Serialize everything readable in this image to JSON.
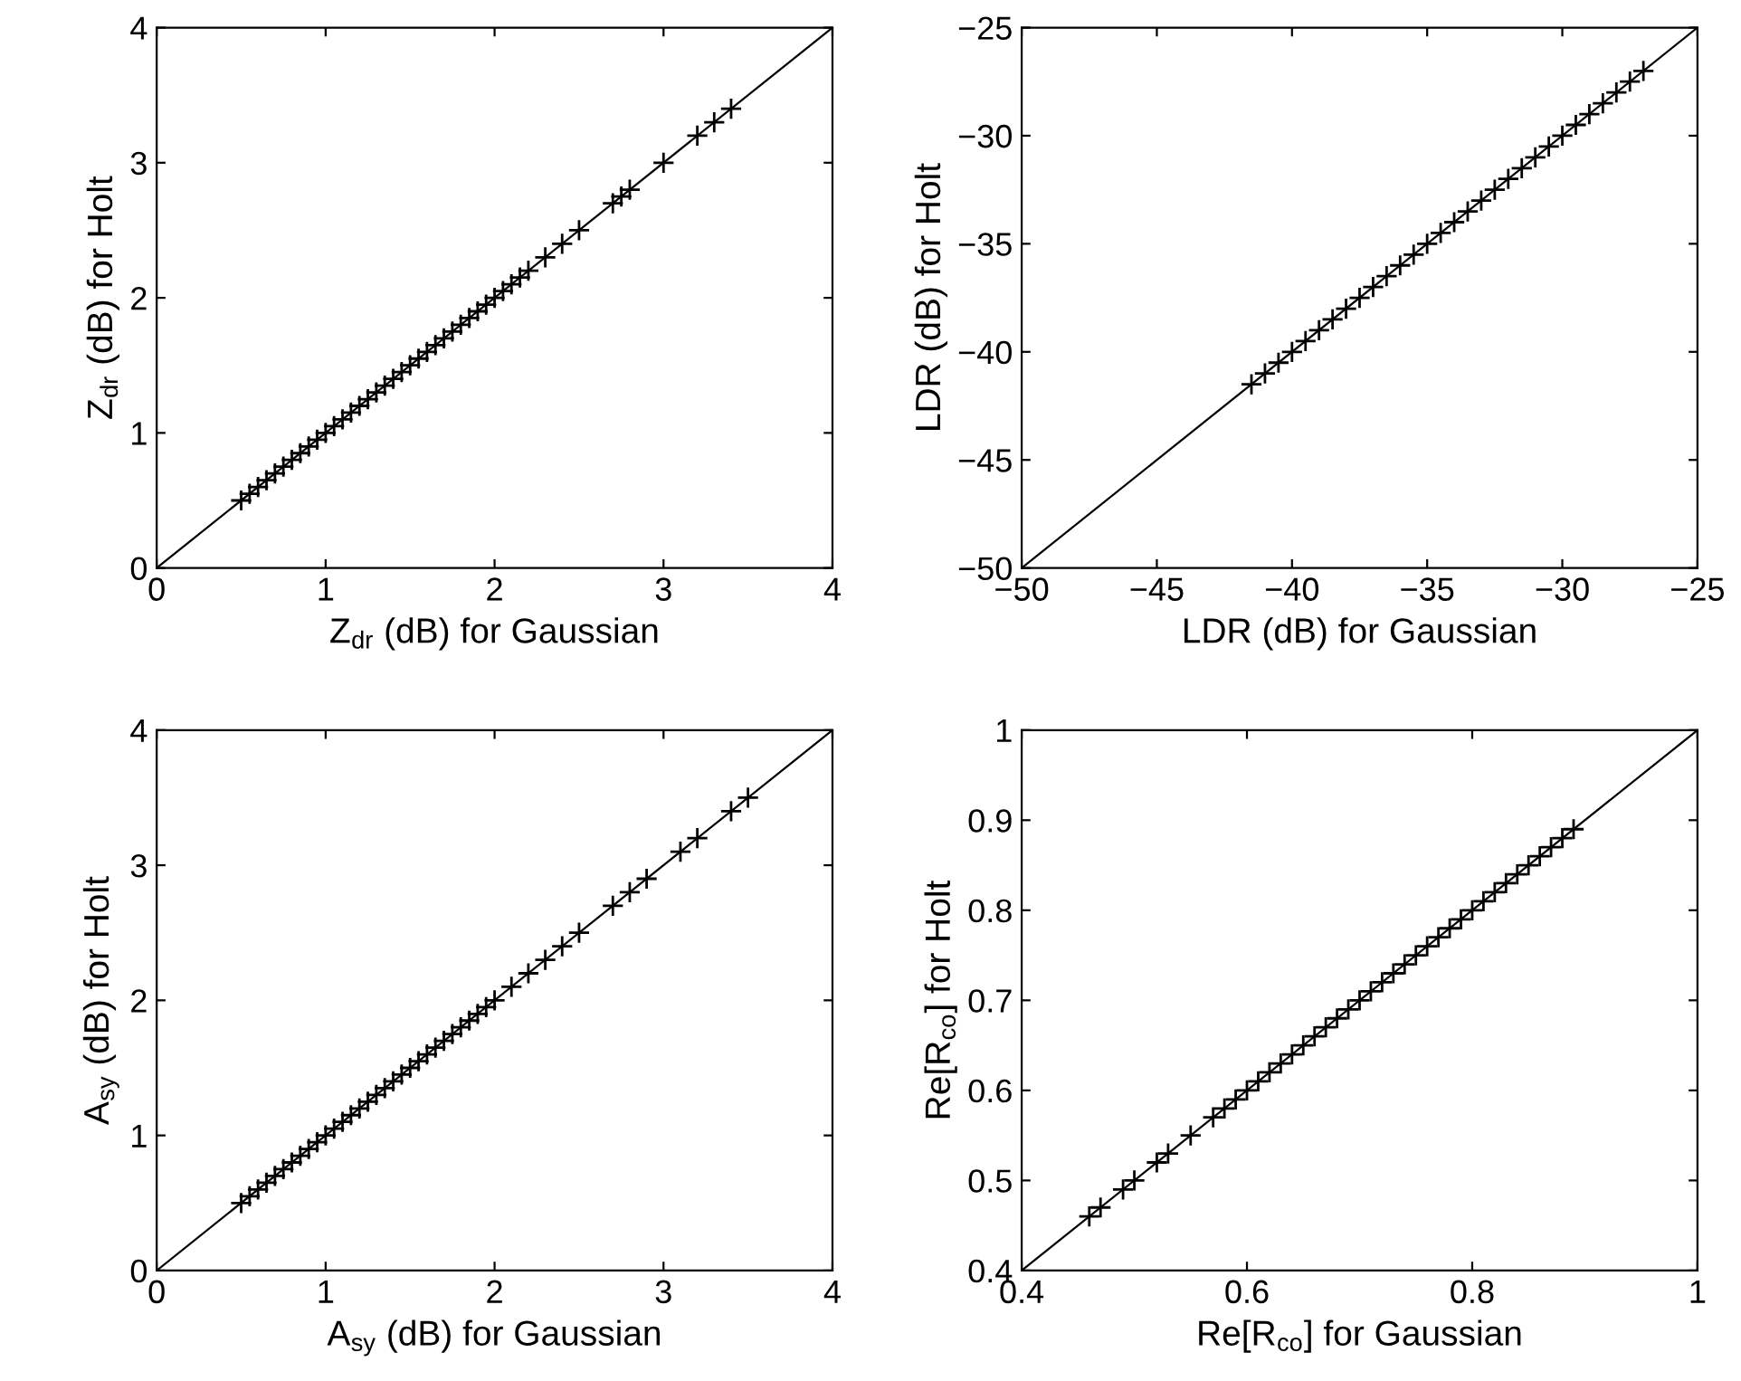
{
  "chart_data": [
    {
      "type": "scatter",
      "xlabel": "Z$_{dr}$ (dB) for Gaussian",
      "ylabel": "Z$_{dr}$ (dB) for Holt",
      "xlim": [
        0,
        4
      ],
      "ylim": [
        0,
        4
      ],
      "xticks": [
        0,
        1,
        2,
        3,
        4
      ],
      "yticks": [
        0,
        1,
        2,
        3,
        4
      ],
      "grid": false,
      "series": [
        {
          "marker": "cross",
          "color": "#000000",
          "x": [
            0.5,
            0.55,
            0.6,
            0.65,
            0.7,
            0.75,
            0.8,
            0.85,
            0.9,
            0.95,
            1.0,
            1.05,
            1.1,
            1.15,
            1.2,
            1.25,
            1.3,
            1.35,
            1.4,
            1.45,
            1.5,
            1.55,
            1.6,
            1.65,
            1.7,
            1.75,
            1.8,
            1.85,
            1.9,
            1.95,
            2.0,
            2.05,
            2.1,
            2.15,
            2.2,
            2.3,
            2.4,
            2.5,
            2.7,
            2.75,
            2.8,
            3.0,
            3.2,
            3.3,
            3.4
          ],
          "values": [
            0.5,
            0.55,
            0.6,
            0.65,
            0.7,
            0.75,
            0.8,
            0.85,
            0.9,
            0.95,
            1.0,
            1.05,
            1.1,
            1.15,
            1.2,
            1.25,
            1.3,
            1.35,
            1.4,
            1.45,
            1.5,
            1.55,
            1.6,
            1.65,
            1.7,
            1.75,
            1.8,
            1.85,
            1.9,
            1.95,
            2.0,
            2.05,
            2.1,
            2.15,
            2.2,
            2.3,
            2.4,
            2.5,
            2.7,
            2.75,
            2.8,
            3.0,
            3.2,
            3.3,
            3.4
          ]
        },
        {
          "type": "line",
          "color": "#000000",
          "x": [
            0,
            4
          ],
          "values": [
            0,
            4
          ]
        }
      ]
    },
    {
      "type": "scatter",
      "xlabel": "LDR (dB) for Gaussian",
      "ylabel": "LDR (dB) for Holt",
      "xlim": [
        -50,
        -25
      ],
      "ylim": [
        -50,
        -25
      ],
      "xticks": [
        -50,
        -45,
        -40,
        -35,
        -30,
        -25
      ],
      "yticks": [
        -50,
        -45,
        -40,
        -35,
        -30,
        -25
      ],
      "grid": false,
      "series": [
        {
          "marker": "cross",
          "color": "#000000",
          "x": [
            -41.5,
            -41,
            -40.5,
            -40,
            -39.5,
            -39,
            -38.5,
            -38,
            -37.5,
            -37,
            -36.5,
            -36,
            -35.5,
            -35,
            -34.5,
            -34,
            -33.5,
            -33,
            -32.5,
            -32,
            -31.5,
            -31,
            -30.5,
            -30,
            -29.5,
            -29,
            -28.5,
            -28,
            -27.5,
            -27
          ],
          "values": [
            -41.5,
            -41,
            -40.5,
            -40,
            -39.5,
            -39,
            -38.5,
            -38,
            -37.5,
            -37,
            -36.5,
            -36,
            -35.5,
            -35,
            -34.5,
            -34,
            -33.5,
            -33,
            -32.5,
            -32,
            -31.5,
            -31,
            -30.5,
            -30,
            -29.5,
            -29,
            -28.5,
            -28,
            -27.5,
            -27
          ]
        },
        {
          "type": "line",
          "color": "#000000",
          "x": [
            -50,
            -25
          ],
          "values": [
            -50,
            -25
          ]
        }
      ]
    },
    {
      "type": "scatter",
      "xlabel": "A$_{sy}$ (dB) for Gaussian",
      "ylabel": "A$_{sy}$ (dB) for Holt",
      "xlim": [
        0,
        4
      ],
      "ylim": [
        0,
        4
      ],
      "xticks": [
        0,
        1,
        2,
        3,
        4
      ],
      "yticks": [
        0,
        1,
        2,
        3,
        4
      ],
      "grid": false,
      "series": [
        {
          "marker": "cross",
          "color": "#000000",
          "x": [
            0.5,
            0.55,
            0.6,
            0.65,
            0.7,
            0.75,
            0.8,
            0.85,
            0.9,
            0.95,
            1.0,
            1.05,
            1.1,
            1.15,
            1.2,
            1.25,
            1.3,
            1.35,
            1.4,
            1.45,
            1.5,
            1.55,
            1.6,
            1.65,
            1.7,
            1.75,
            1.8,
            1.85,
            1.9,
            1.95,
            2.0,
            2.1,
            2.2,
            2.3,
            2.4,
            2.5,
            2.7,
            2.8,
            2.9,
            3.1,
            3.2,
            3.4,
            3.5
          ],
          "values": [
            0.5,
            0.55,
            0.6,
            0.65,
            0.7,
            0.75,
            0.8,
            0.85,
            0.9,
            0.95,
            1.0,
            1.05,
            1.1,
            1.15,
            1.2,
            1.25,
            1.3,
            1.35,
            1.4,
            1.45,
            1.5,
            1.55,
            1.6,
            1.65,
            1.7,
            1.75,
            1.8,
            1.85,
            1.9,
            1.95,
            2.0,
            2.1,
            2.2,
            2.3,
            2.4,
            2.5,
            2.7,
            2.8,
            2.9,
            3.1,
            3.2,
            3.4,
            3.5
          ]
        },
        {
          "type": "line",
          "color": "#000000",
          "x": [
            0,
            4
          ],
          "values": [
            0,
            4
          ]
        }
      ]
    },
    {
      "type": "scatter",
      "xlabel": "Re[R$_{co}$] for Gaussian",
      "ylabel": "Re[R$_{co}$] for Holt",
      "xlim": [
        0.4,
        1
      ],
      "ylim": [
        0.4,
        1
      ],
      "xticks": [
        0.4,
        0.6,
        0.8,
        1
      ],
      "yticks": [
        0.4,
        0.5,
        0.6,
        0.7,
        0.8,
        0.9,
        1
      ],
      "grid": false,
      "series": [
        {
          "marker": "cross",
          "color": "#000000",
          "x": [
            0.46,
            0.47,
            0.49,
            0.5,
            0.52,
            0.53,
            0.55,
            0.57,
            0.58,
            0.59,
            0.6,
            0.61,
            0.62,
            0.63,
            0.64,
            0.65,
            0.66,
            0.67,
            0.68,
            0.69,
            0.7,
            0.71,
            0.72,
            0.73,
            0.74,
            0.75,
            0.76,
            0.77,
            0.78,
            0.79,
            0.8,
            0.81,
            0.82,
            0.83,
            0.84,
            0.85,
            0.86,
            0.87,
            0.88,
            0.89
          ],
          "values": [
            0.46,
            0.47,
            0.49,
            0.5,
            0.52,
            0.53,
            0.55,
            0.57,
            0.58,
            0.59,
            0.6,
            0.61,
            0.62,
            0.63,
            0.64,
            0.65,
            0.66,
            0.67,
            0.68,
            0.69,
            0.7,
            0.71,
            0.72,
            0.73,
            0.74,
            0.75,
            0.76,
            0.77,
            0.78,
            0.79,
            0.8,
            0.81,
            0.82,
            0.83,
            0.84,
            0.85,
            0.86,
            0.87,
            0.88,
            0.89
          ]
        },
        {
          "type": "line",
          "color": "#000000",
          "x": [
            0.4,
            1
          ],
          "values": [
            0.4,
            1
          ]
        }
      ]
    }
  ]
}
